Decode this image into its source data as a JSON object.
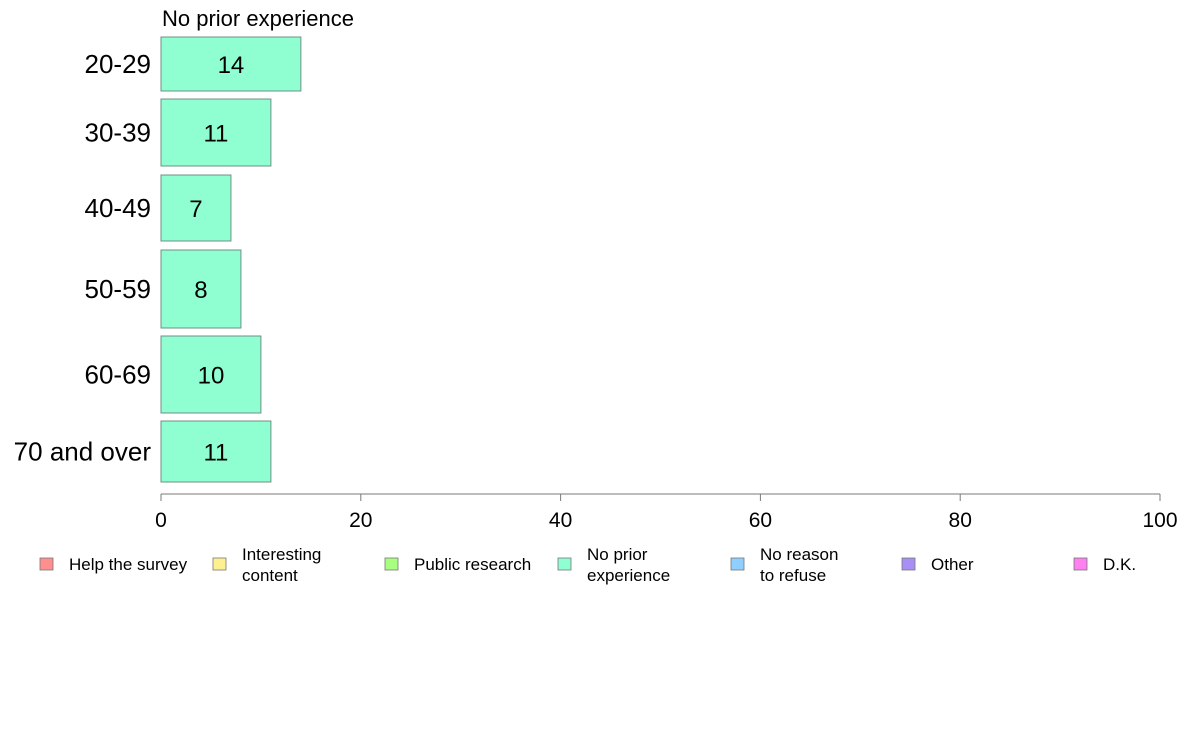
{
  "chart_data": {
    "type": "bar",
    "orientation": "horizontal",
    "title": "No prior experience",
    "categories": [
      "20-29",
      "30-39",
      "40-49",
      "50-59",
      "60-69",
      "70 and over"
    ],
    "series": [
      {
        "name": "No prior experience",
        "color": "#8fffd2",
        "values": [
          14,
          11,
          7,
          8,
          10,
          11
        ]
      }
    ],
    "value_labels": [
      "14",
      "11",
      "7",
      "8",
      "10",
      "11"
    ],
    "xlim": [
      0,
      100
    ],
    "xticks": [
      0,
      20,
      40,
      60,
      80,
      100
    ],
    "xtick_labels": [
      "0",
      "20",
      "40",
      "60",
      "80",
      "100"
    ],
    "grid": false,
    "legend_placement": "bottom",
    "legend": [
      {
        "lines": [
          "Help the survey"
        ],
        "color": "#ff8f8f"
      },
      {
        "lines": [
          "Interesting",
          "content"
        ],
        "color": "#fff08f"
      },
      {
        "lines": [
          "Public research"
        ],
        "color": "#a8ff7f"
      },
      {
        "lines": [
          "No prior",
          "experience"
        ],
        "color": "#8fffd2"
      },
      {
        "lines": [
          "No reason",
          "to refuse"
        ],
        "color": "#8fcfff"
      },
      {
        "lines": [
          "Other"
        ],
        "color": "#a88ff5"
      },
      {
        "lines": [
          "D.K."
        ],
        "color": "#ff80f0"
      }
    ]
  }
}
